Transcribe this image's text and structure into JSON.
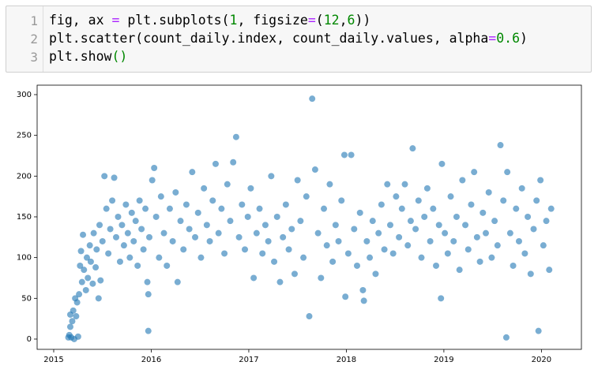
{
  "code": {
    "line_numbers": [
      1,
      2,
      3
    ],
    "lines": [
      [
        {
          "text": "fig, ax ",
          "color": "#000000"
        },
        {
          "text": "=",
          "color": "#aa22ff"
        },
        {
          "text": " plt.subplots(",
          "color": "#000000"
        },
        {
          "text": "1",
          "color": "#008800"
        },
        {
          "text": ", figsize",
          "color": "#000000"
        },
        {
          "text": "=",
          "color": "#aa22ff"
        },
        {
          "text": "(",
          "color": "#000000"
        },
        {
          "text": "12",
          "color": "#008800"
        },
        {
          "text": ",",
          "color": "#000000"
        },
        {
          "text": "6",
          "color": "#008800"
        },
        {
          "text": "))",
          "color": "#000000"
        }
      ],
      [
        {
          "text": "plt.scatter(count_daily.index, count_daily.values, alpha",
          "color": "#000000"
        },
        {
          "text": "=",
          "color": "#aa22ff"
        },
        {
          "text": "0.6",
          "color": "#008800"
        },
        {
          "text": ")",
          "color": "#000000"
        }
      ],
      [
        {
          "text": "plt.show",
          "color": "#000000"
        },
        {
          "text": "()",
          "color": "#008800"
        }
      ]
    ]
  },
  "chart_data": {
    "type": "scatter",
    "color": "#1f77b4",
    "alpha": 0.6,
    "xlim": [
      2014.83,
      2020.41
    ],
    "xticks": [
      2015,
      2016,
      2017,
      2018,
      2019,
      2020
    ],
    "ylim": [
      -12.6,
      311.6
    ],
    "yticks": [
      0,
      50,
      100,
      150,
      200,
      250,
      300
    ],
    "x": [
      2015.15,
      2015.16,
      2015.17,
      2015.17,
      2015.18,
      2015.19,
      2015.2,
      2015.21,
      2015.22,
      2015.23,
      2015.24,
      2015.25,
      2015.26,
      2015.27,
      2015.28,
      2015.29,
      2015.3,
      2015.31,
      2015.33,
      2015.34,
      2015.35,
      2015.37,
      2015.38,
      2015.4,
      2015.41,
      2015.43,
      2015.44,
      2015.46,
      2015.47,
      2015.48,
      2015.5,
      2015.52,
      2015.54,
      2015.56,
      2015.58,
      2015.6,
      2015.62,
      2015.64,
      2015.66,
      2015.68,
      2015.7,
      2015.72,
      2015.74,
      2015.76,
      2015.78,
      2015.8,
      2015.82,
      2015.84,
      2015.86,
      2015.88,
      2015.9,
      2015.92,
      2015.94,
      2015.96,
      2015.97,
      2015.97,
      2015.98,
      2016.01,
      2016.03,
      2016.05,
      2016.08,
      2016.1,
      2016.13,
      2016.16,
      2016.19,
      2016.22,
      2016.25,
      2016.27,
      2016.3,
      2016.33,
      2016.36,
      2016.39,
      2016.42,
      2016.45,
      2016.48,
      2016.51,
      2016.54,
      2016.57,
      2016.6,
      2016.63,
      2016.66,
      2016.69,
      2016.72,
      2016.75,
      2016.78,
      2016.81,
      2016.84,
      2016.87,
      2016.9,
      2016.93,
      2016.96,
      2016.99,
      2017.02,
      2017.05,
      2017.08,
      2017.11,
      2017.14,
      2017.17,
      2017.2,
      2017.23,
      2017.26,
      2017.29,
      2017.32,
      2017.35,
      2017.38,
      2017.41,
      2017.44,
      2017.47,
      2017.5,
      2017.53,
      2017.56,
      2017.59,
      2017.62,
      2017.65,
      2017.68,
      2017.71,
      2017.74,
      2017.77,
      2017.8,
      2017.83,
      2017.86,
      2017.89,
      2017.92,
      2017.95,
      2017.98,
      2017.99,
      2018.02,
      2018.05,
      2018.08,
      2018.11,
      2018.14,
      2018.17,
      2018.18,
      2018.21,
      2018.24,
      2018.27,
      2018.3,
      2018.33,
      2018.36,
      2018.39,
      2018.42,
      2018.45,
      2018.48,
      2018.51,
      2018.54,
      2018.57,
      2018.6,
      2018.63,
      2018.66,
      2018.68,
      2018.71,
      2018.74,
      2018.77,
      2018.8,
      2018.83,
      2018.86,
      2018.89,
      2018.92,
      2018.95,
      2018.97,
      2018.98,
      2019.01,
      2019.04,
      2019.07,
      2019.1,
      2019.13,
      2019.16,
      2019.19,
      2019.22,
      2019.25,
      2019.28,
      2019.31,
      2019.34,
      2019.37,
      2019.4,
      2019.43,
      2019.46,
      2019.49,
      2019.52,
      2019.55,
      2019.58,
      2019.61,
      2019.64,
      2019.65,
      2019.68,
      2019.71,
      2019.74,
      2019.77,
      2019.8,
      2019.83,
      2019.86,
      2019.89,
      2019.92,
      2019.95,
      2019.97,
      2019.99,
      2020.02,
      2020.05,
      2020.08,
      2020.1
    ],
    "values": [
      2,
      5,
      30,
      15,
      2,
      22,
      35,
      0,
      50,
      28,
      45,
      3,
      55,
      90,
      108,
      70,
      128,
      85,
      60,
      100,
      75,
      115,
      95,
      68,
      130,
      88,
      110,
      50,
      140,
      72,
      120,
      200,
      160,
      105,
      135,
      170,
      198,
      125,
      150,
      95,
      140,
      115,
      165,
      130,
      100,
      155,
      120,
      145,
      90,
      170,
      135,
      110,
      160,
      70,
      55,
      10,
      125,
      195,
      210,
      150,
      100,
      175,
      130,
      90,
      160,
      120,
      180,
      70,
      145,
      110,
      165,
      135,
      205,
      125,
      155,
      100,
      185,
      140,
      120,
      170,
      215,
      130,
      160,
      105,
      190,
      145,
      217,
      248,
      125,
      165,
      110,
      150,
      185,
      75,
      130,
      160,
      105,
      140,
      120,
      200,
      95,
      150,
      70,
      125,
      165,
      110,
      135,
      80,
      195,
      145,
      100,
      175,
      28,
      295,
      208,
      130,
      75,
      160,
      115,
      190,
      95,
      140,
      120,
      170,
      226,
      52,
      105,
      226,
      135,
      90,
      155,
      60,
      47,
      120,
      100,
      145,
      80,
      130,
      165,
      110,
      190,
      140,
      105,
      175,
      125,
      160,
      190,
      115,
      145,
      234,
      135,
      170,
      100,
      150,
      185,
      120,
      160,
      90,
      140,
      50,
      215,
      130,
      105,
      175,
      120,
      150,
      85,
      195,
      140,
      110,
      165,
      205,
      125,
      95,
      155,
      130,
      180,
      100,
      145,
      115,
      238,
      170,
      2,
      205,
      130,
      90,
      160,
      120,
      185,
      105,
      150,
      80,
      135,
      170,
      10,
      195,
      115,
      145,
      85,
      160
    ]
  }
}
